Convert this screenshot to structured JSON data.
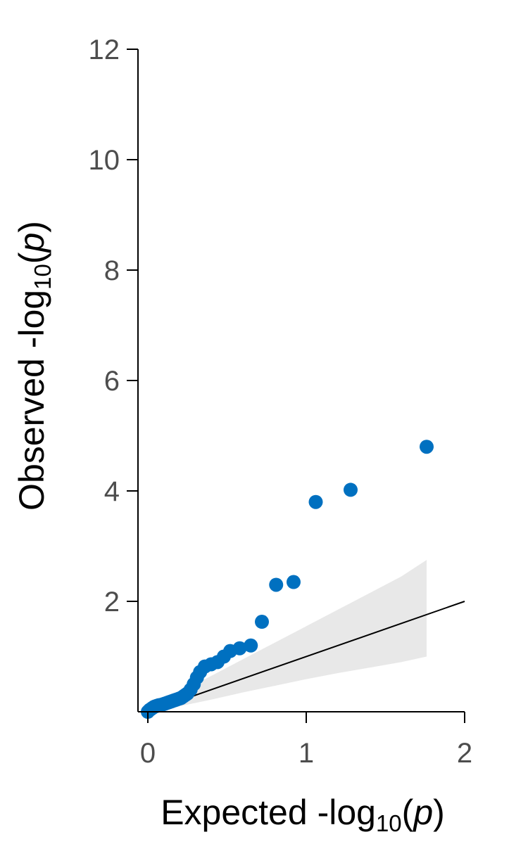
{
  "chart_data": {
    "type": "scatter",
    "title": "",
    "xlabel": {
      "prefix": "Expected -log",
      "sub": "10",
      "open": "(",
      "var": "p",
      "close": ")"
    },
    "ylabel": {
      "prefix": "Observed -log",
      "sub": "10",
      "open": "(",
      "var": "p",
      "close": ")"
    },
    "xlim": [
      0,
      2
    ],
    "ylim": [
      0,
      12
    ],
    "xticks": [
      "0",
      "1",
      "2"
    ],
    "xtick_values": [
      0,
      1,
      2
    ],
    "yticks": [
      "2",
      "4",
      "6",
      "8",
      "10",
      "12"
    ],
    "ytick_values": [
      2,
      4,
      6,
      8,
      10,
      12
    ],
    "grid": false,
    "colors": {
      "points": "#0070c0",
      "band": "#e8e8e8",
      "reference": "#000000",
      "axis": "#000000"
    },
    "reference_line": {
      "x": [
        0,
        2
      ],
      "y": [
        0,
        2
      ]
    },
    "confidence_band": {
      "x": [
        0.0,
        0.2,
        0.4,
        0.6,
        0.8,
        1.0,
        1.2,
        1.4,
        1.6,
        1.76
      ],
      "lower": [
        0.0,
        0.1,
        0.22,
        0.35,
        0.47,
        0.59,
        0.7,
        0.8,
        0.9,
        1.0
      ],
      "upper": [
        0.0,
        0.35,
        0.65,
        0.95,
        1.25,
        1.55,
        1.85,
        2.15,
        2.45,
        2.75
      ]
    },
    "series": [
      {
        "x": [
          0.0,
          0.01,
          0.02,
          0.03,
          0.04,
          0.05,
          0.06,
          0.07,
          0.08,
          0.09,
          0.1,
          0.11,
          0.12,
          0.13,
          0.14,
          0.15,
          0.16,
          0.17,
          0.18,
          0.19,
          0.2,
          0.21,
          0.22,
          0.23,
          0.24,
          0.25,
          0.27,
          0.29,
          0.31,
          0.33,
          0.36,
          0.4,
          0.44,
          0.48,
          0.52,
          0.58,
          0.65,
          0.72,
          0.81,
          0.92,
          1.06,
          1.28,
          1.76
        ],
        "y": [
          0.0,
          0.03,
          0.05,
          0.07,
          0.09,
          0.1,
          0.11,
          0.12,
          0.12,
          0.13,
          0.14,
          0.15,
          0.16,
          0.17,
          0.18,
          0.19,
          0.2,
          0.21,
          0.22,
          0.23,
          0.24,
          0.25,
          0.27,
          0.29,
          0.31,
          0.33,
          0.4,
          0.5,
          0.62,
          0.72,
          0.82,
          0.86,
          0.9,
          1.0,
          1.1,
          1.15,
          1.2,
          1.63,
          2.3,
          2.35,
          3.8,
          4.02,
          4.8
        ]
      }
    ]
  }
}
